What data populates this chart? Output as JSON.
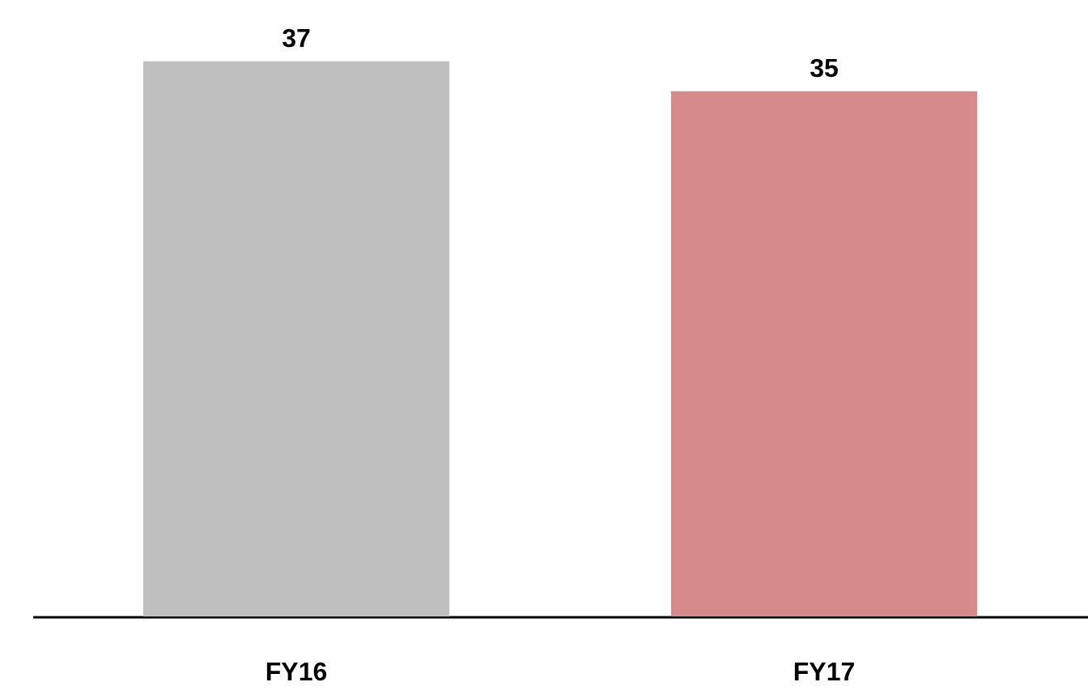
{
  "chart_data": {
    "type": "bar",
    "categories": [
      "FY16",
      "FY17"
    ],
    "values": [
      37,
      35
    ],
    "colors": [
      "#bfbfbf",
      "#d68b8a"
    ],
    "data_labels": true,
    "grid": false,
    "legend": false
  }
}
